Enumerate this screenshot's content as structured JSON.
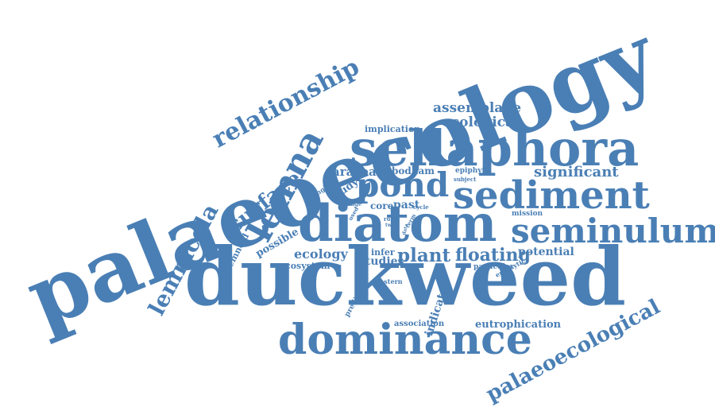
{
  "color": "#4a7fb5",
  "words": [
    {
      "id": "palaeoecology",
      "text": "palaeoecology"
    },
    {
      "id": "duckweed",
      "text": "duckweed"
    },
    {
      "id": "sellaphora",
      "text": "sellaphora"
    },
    {
      "id": "diatom",
      "text": "diatom"
    },
    {
      "id": "dominance",
      "text": "dominance"
    },
    {
      "id": "sediment",
      "text": "sediment"
    },
    {
      "id": "seminulum",
      "text": "seminulum"
    },
    {
      "id": "lemna",
      "text": "lemna"
    },
    {
      "id": "pond",
      "text": "pond"
    },
    {
      "id": "relationship",
      "text": "relationship"
    },
    {
      "id": "palaeoecological",
      "text": "palaeoecological"
    },
    {
      "id": "lemnicola",
      "text": "lemnicola"
    },
    {
      "id": "surface",
      "text": "surface"
    },
    {
      "id": "plant",
      "text": "plant"
    },
    {
      "id": "floating",
      "text": "floating"
    },
    {
      "id": "assemblage",
      "text": "assemblage"
    },
    {
      "id": "ecological",
      "text": "ecological"
    },
    {
      "id": "significant",
      "text": "significant"
    },
    {
      "id": "araceae",
      "text": "araceae"
    },
    {
      "id": "ecology",
      "text": "ecology"
    },
    {
      "id": "studies",
      "text": "studies"
    },
    {
      "id": "potential",
      "text": "potential"
    },
    {
      "id": "indicator",
      "text": "indicator"
    },
    {
      "id": "eutrophication",
      "text": "eutrophication"
    },
    {
      "id": "bodham",
      "text": "bodham"
    },
    {
      "id": "implication",
      "text": "implication"
    },
    {
      "id": "core",
      "text": "core"
    },
    {
      "id": "past",
      "text": "past"
    },
    {
      "id": "infer",
      "text": "infer"
    },
    {
      "id": "ecosystem",
      "text": "ecosystem"
    },
    {
      "id": "possible",
      "text": "possible"
    },
    {
      "id": "lemnoid",
      "text": "lemnoid"
    },
    {
      "id": "study",
      "text": "study"
    },
    {
      "id": "england",
      "text": "england"
    },
    {
      "id": "mission",
      "text": "mission"
    },
    {
      "id": "epiphyte",
      "text": "epiphyte"
    },
    {
      "id": "subject",
      "text": "subject"
    },
    {
      "id": "association",
      "text": "association"
    },
    {
      "id": "predictor",
      "text": "predictor"
    },
    {
      "id": "particular",
      "text": "particular"
    },
    {
      "id": "epiphytic",
      "text": "epiphytic"
    },
    {
      "id": "eastern",
      "text": "eastern"
    },
    {
      "id": "change",
      "text": "change"
    },
    {
      "id": "used",
      "text": "used"
    },
    {
      "id": "cycle",
      "text": "cycle"
    },
    {
      "id": "roll",
      "text": "roll"
    },
    {
      "id": "term",
      "text": "term"
    },
    {
      "id": "data",
      "text": "data"
    },
    {
      "id": "two",
      "text": "two"
    }
  ]
}
